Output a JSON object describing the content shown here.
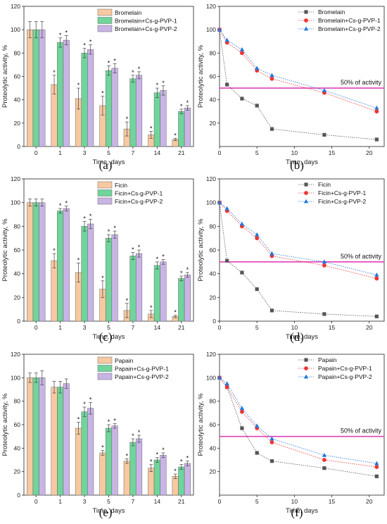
{
  "chart_data": [
    {
      "type": "bar",
      "panel_label": "(a)",
      "xlabel": "Time, days",
      "ylabel": "Proteolytic activity, %",
      "categories": [
        "0",
        "1",
        "3",
        "5",
        "7",
        "14",
        "21"
      ],
      "ylim": [
        0,
        120
      ],
      "yticks": [
        0,
        20,
        40,
        60,
        80,
        100,
        120
      ],
      "legend_position": "top-right",
      "series": [
        {
          "name": "Bromelain",
          "color": "#f8c9a0",
          "values": [
            100,
            53,
            41,
            35,
            15,
            10,
            6
          ],
          "errors": [
            7,
            8,
            9,
            8,
            6,
            3,
            1
          ],
          "significant": [
            false,
            true,
            true,
            true,
            true,
            true,
            true
          ]
        },
        {
          "name": "Bromelain+Cs-g-PVP-1",
          "color": "#6fd59a",
          "values": [
            100,
            89,
            80,
            65,
            58,
            46,
            30
          ],
          "errors": [
            7,
            4,
            4,
            4,
            3,
            4,
            2
          ],
          "significant": [
            false,
            true,
            true,
            true,
            true,
            true,
            true
          ]
        },
        {
          "name": "Bromelain+Cs-g-PVP-2",
          "color": "#c9b4e6",
          "values": [
            100,
            91,
            83,
            67,
            61,
            48,
            33
          ],
          "errors": [
            7,
            4,
            4,
            4,
            3,
            4,
            2
          ],
          "significant": [
            false,
            true,
            true,
            true,
            true,
            true,
            true
          ]
        }
      ]
    },
    {
      "type": "line",
      "panel_label": "(b)",
      "xlabel": "Time, days",
      "ylabel": "Proteolytic activity, %",
      "x": [
        0,
        1,
        3,
        5,
        7,
        14,
        21
      ],
      "xlim": [
        0,
        22
      ],
      "ylim": [
        0,
        120
      ],
      "xticks": [
        0,
        5,
        10,
        15,
        20
      ],
      "yticks": [
        20,
        40,
        60,
        80,
        100,
        120
      ],
      "reference_line": {
        "y": 50,
        "label": "50% of activity",
        "color": "#e040b8"
      },
      "legend_position": "top-right",
      "series": [
        {
          "name": "Bromelain",
          "marker": "square",
          "color": "#555555",
          "values": [
            100,
            53,
            41,
            35,
            15,
            10,
            6
          ]
        },
        {
          "name": "Bromelain+Cs-g-PVP-1",
          "marker": "circle",
          "color": "#ee3333",
          "values": [
            100,
            89,
            80,
            65,
            58,
            46,
            30
          ]
        },
        {
          "name": "Bromelain+Cs-g-PVP-2",
          "marker": "triangle",
          "color": "#2277dd",
          "values": [
            100,
            91,
            83,
            67,
            61,
            48,
            33
          ]
        }
      ]
    },
    {
      "type": "bar",
      "panel_label": "(c)",
      "xlabel": "Time, days",
      "ylabel": "Proteolytic activity, %",
      "categories": [
        "0",
        "1",
        "3",
        "5",
        "7",
        "14",
        "21"
      ],
      "ylim": [
        0,
        120
      ],
      "yticks": [
        0,
        20,
        40,
        60,
        80,
        100,
        120
      ],
      "legend_position": "top-right",
      "series": [
        {
          "name": "Ficin",
          "color": "#f8c9a0",
          "values": [
            100,
            51,
            41,
            27,
            9,
            6,
            4
          ],
          "errors": [
            3,
            6,
            8,
            7,
            6,
            3,
            1
          ],
          "significant": [
            false,
            true,
            true,
            true,
            true,
            true,
            true
          ]
        },
        {
          "name": "Ficin+Cs-g-PVP-1",
          "color": "#6fd59a",
          "values": [
            100,
            93,
            80,
            70,
            55,
            47,
            36
          ],
          "errors": [
            3,
            2,
            4,
            3,
            3,
            3,
            2
          ],
          "significant": [
            false,
            true,
            true,
            true,
            true,
            true,
            true
          ]
        },
        {
          "name": "Ficin+Cs-g-PVP-2",
          "color": "#c9b4e6",
          "values": [
            100,
            95,
            82,
            73,
            57,
            50,
            39
          ],
          "errors": [
            3,
            2,
            4,
            3,
            3,
            2,
            2
          ],
          "significant": [
            false,
            true,
            true,
            true,
            true,
            true,
            true
          ]
        }
      ]
    },
    {
      "type": "line",
      "panel_label": "(d)",
      "xlabel": "Time, days",
      "ylabel": "Proteolytic activity, %",
      "x": [
        0,
        1,
        3,
        5,
        7,
        14,
        21
      ],
      "xlim": [
        0,
        22
      ],
      "ylim": [
        0,
        120
      ],
      "xticks": [
        0,
        5,
        10,
        15,
        20
      ],
      "yticks": [
        0,
        20,
        40,
        60,
        80,
        100,
        120
      ],
      "reference_line": {
        "y": 50,
        "label": "50% of activity",
        "color": "#e040b8"
      },
      "legend_position": "top-right",
      "series": [
        {
          "name": "Ficin",
          "marker": "square",
          "color": "#555555",
          "values": [
            100,
            51,
            41,
            27,
            9,
            6,
            4
          ]
        },
        {
          "name": "Ficin+Cs-g-PVP-1",
          "marker": "circle",
          "color": "#ee3333",
          "values": [
            100,
            93,
            80,
            70,
            55,
            47,
            36
          ]
        },
        {
          "name": "Ficin+Cs-g-PVP-2",
          "marker": "triangle",
          "color": "#2277dd",
          "values": [
            100,
            95,
            82,
            73,
            57,
            50,
            39
          ]
        }
      ]
    },
    {
      "type": "bar",
      "panel_label": "(e)",
      "xlabel": "Time, days",
      "ylabel": "Proteolytic activity, %",
      "categories": [
        "0",
        "1",
        "3",
        "5",
        "7",
        "14",
        "21"
      ],
      "ylim": [
        0,
        120
      ],
      "yticks": [
        0,
        20,
        40,
        60,
        80,
        100,
        120
      ],
      "legend_position": "top-right",
      "series": [
        {
          "name": "Papain",
          "color": "#f8c9a0",
          "values": [
            100,
            92,
            57,
            36,
            29,
            23,
            16
          ],
          "errors": [
            4,
            5,
            5,
            2,
            2,
            3,
            2
          ],
          "significant": [
            false,
            false,
            true,
            true,
            true,
            true,
            true
          ]
        },
        {
          "name": "Papain+Cs-g-PVP-1",
          "color": "#6fd59a",
          "values": [
            100,
            92,
            71,
            57,
            45,
            30,
            24
          ],
          "errors": [
            4,
            5,
            4,
            3,
            3,
            2,
            2
          ],
          "significant": [
            false,
            false,
            true,
            true,
            true,
            true,
            true
          ]
        },
        {
          "name": "Papain+Cs-g-PVP-2",
          "color": "#c9b4e6",
          "values": [
            100,
            95,
            74,
            59,
            48,
            34,
            27
          ],
          "errors": [
            6,
            4,
            5,
            2,
            3,
            2,
            2
          ],
          "significant": [
            false,
            false,
            true,
            true,
            true,
            true,
            true
          ]
        }
      ]
    },
    {
      "type": "line",
      "panel_label": "(f)",
      "xlabel": "Time, days",
      "ylabel": "Proteolytic activity, %",
      "x": [
        0,
        1,
        3,
        5,
        7,
        14,
        21
      ],
      "xlim": [
        0,
        22
      ],
      "ylim": [
        0,
        120
      ],
      "xticks": [
        0,
        5,
        10,
        15,
        20
      ],
      "yticks": [
        20,
        40,
        60,
        80,
        100,
        120
      ],
      "reference_line": {
        "y": 50,
        "label": "50% of activity",
        "color": "#e040b8"
      },
      "legend_position": "top-right",
      "series": [
        {
          "name": "Papain",
          "marker": "square",
          "color": "#555555",
          "values": [
            100,
            92,
            57,
            36,
            29,
            23,
            16
          ]
        },
        {
          "name": "Papain+Cs-g-PVP-1",
          "marker": "circle",
          "color": "#ee3333",
          "values": [
            100,
            92,
            71,
            57,
            45,
            30,
            24
          ]
        },
        {
          "name": "Papain+Cs-g-PVP-2",
          "marker": "triangle",
          "color": "#2277dd",
          "values": [
            100,
            95,
            74,
            59,
            48,
            34,
            27
          ]
        }
      ]
    }
  ]
}
